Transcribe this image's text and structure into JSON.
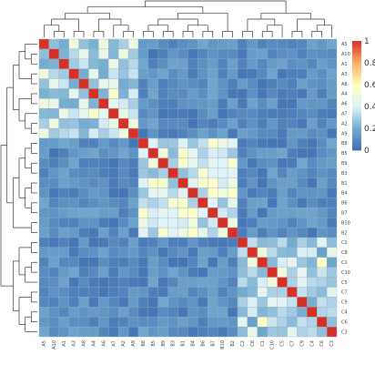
{
  "chart_data": {
    "type": "heatmap",
    "labels": [
      "A5",
      "A10",
      "A1",
      "A3",
      "A8",
      "A4",
      "A6",
      "A7",
      "A2",
      "A9",
      "B8",
      "B5",
      "B9",
      "B3",
      "B1",
      "B4",
      "B6",
      "B7",
      "B10",
      "B2",
      "C2",
      "C8",
      "C1",
      "C10",
      "C5",
      "C7",
      "C9",
      "C4",
      "C6",
      "C3"
    ],
    "groups": [
      {
        "name": "A",
        "members": [
          0,
          9
        ],
        "rho": 0.35
      },
      {
        "name": "B",
        "members": [
          10,
          19
        ],
        "rho": 0.4
      },
      {
        "name": "C",
        "members": [
          20,
          29
        ],
        "rho": 0.3
      }
    ],
    "background_level": 0.02,
    "diagonal": 1,
    "highlights": [
      {
        "row": 0,
        "col": 3,
        "value": 0.5
      },
      {
        "row": 5,
        "col": 7,
        "value": 0.55
      },
      {
        "row": 8,
        "col": 9,
        "value": 0.5
      },
      {
        "row": 12,
        "col": 14,
        "value": 0.55
      },
      {
        "row": 21,
        "col": 22,
        "value": 0.5
      },
      {
        "row": 23,
        "col": 24,
        "value": 0.5
      },
      {
        "row": 22,
        "col": 28,
        "value": 0.6
      },
      {
        "row": 21,
        "col": 29,
        "value": 0.45
      }
    ],
    "colorbar": {
      "min": 0,
      "max": 1,
      "ticks": [
        "0",
        "0.2",
        "0.4",
        "0.6",
        "0.8",
        "1"
      ]
    },
    "colorscale": [
      "#3f6fb4",
      "#74add1",
      "#e0f3f8",
      "#ffffbf",
      "#fdae61",
      "#d73027"
    ]
  }
}
